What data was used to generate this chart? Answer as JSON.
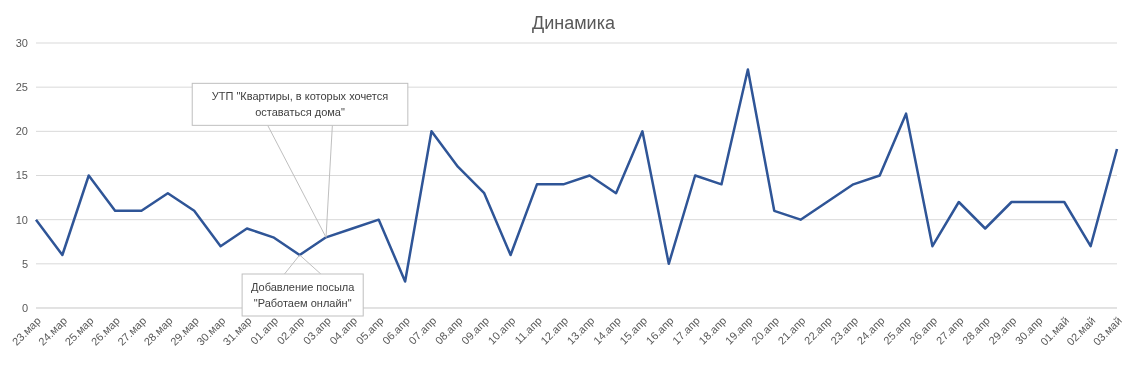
{
  "chart_data": {
    "type": "line",
    "title": "Динамика",
    "categories": [
      "23.мар",
      "24.мар",
      "25.мар",
      "26.мар",
      "27.мар",
      "28.мар",
      "29.мар",
      "30.мар",
      "31.мар",
      "01.апр",
      "02.апр",
      "03.апр",
      "04.апр",
      "05.апр",
      "06.апр",
      "07.апр",
      "08.апр",
      "09.апр",
      "10.апр",
      "11.апр",
      "12.апр",
      "13.апр",
      "14.апр",
      "15.апр",
      "16.апр",
      "17.апр",
      "18.апр",
      "19.апр",
      "20.апр",
      "21.апр",
      "22.апр",
      "23.апр",
      "24.апр",
      "25.апр",
      "26.апр",
      "27.апр",
      "28.апр",
      "29.апр",
      "30.апр",
      "01.май",
      "02.май",
      "03.май"
    ],
    "series": [
      {
        "color": "#2f5597",
        "values": [
          10,
          6,
          15,
          11,
          11,
          13,
          11,
          7,
          9,
          8,
          6,
          8,
          9,
          10,
          3,
          20,
          16,
          13,
          6,
          14,
          14,
          15,
          13,
          20,
          5,
          15,
          14,
          27,
          11,
          10,
          12,
          14,
          15,
          22,
          7,
          12,
          9,
          12,
          12,
          12,
          7,
          18
        ]
      }
    ],
    "ylim": [
      0,
      30
    ],
    "yticks": [
      0,
      5,
      10,
      15,
      20,
      25,
      30
    ],
    "grid": "y",
    "legend": false,
    "marker": "none",
    "line_style": "solid",
    "annotations": [
      {
        "text": "УТП \"Квартиры, в которых хочется оставаться дома\"",
        "x": "03.апр",
        "y": 8
      },
      {
        "text": "Добавление посыла \"Работаем онлайн\"",
        "x": "02.апр",
        "y": 6
      }
    ]
  }
}
